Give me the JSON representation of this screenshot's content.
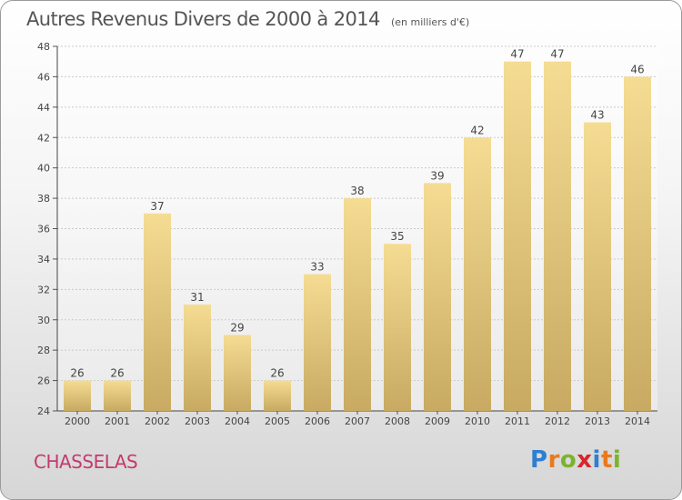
{
  "title": "Autres Revenus Divers de 2000 à 2014",
  "subtitle": "(en milliers d'€)",
  "commune": "CHASSELAS",
  "logo": {
    "letters": [
      "P",
      "r",
      "o",
      "x",
      "i",
      "t",
      "i"
    ],
    "colors": [
      "#2f7fd1",
      "#e87a1e",
      "#7bb32e",
      "#d8262a",
      "#2f7fd1",
      "#e87a1e",
      "#7bb32e"
    ]
  },
  "chart_data": {
    "type": "bar",
    "categories": [
      "2000",
      "2001",
      "2002",
      "2003",
      "2004",
      "2005",
      "2006",
      "2007",
      "2008",
      "2009",
      "2010",
      "2011",
      "2012",
      "2013",
      "2014"
    ],
    "values": [
      26,
      26,
      37,
      31,
      29,
      26,
      33,
      38,
      35,
      39,
      42,
      47,
      47,
      43,
      46
    ],
    "ylim": [
      24,
      48
    ],
    "yticks": [
      24,
      26,
      28,
      30,
      32,
      34,
      36,
      38,
      40,
      42,
      44,
      46,
      48
    ],
    "grid": true,
    "bar_color_top": "#f5dc93",
    "bar_color_bottom": "#c8aa62"
  }
}
